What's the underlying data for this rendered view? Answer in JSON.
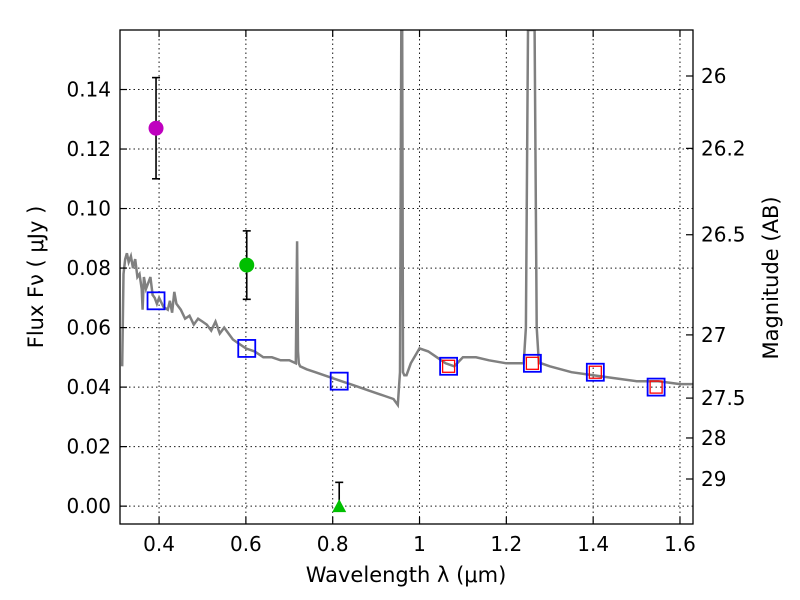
{
  "chart_data": {
    "type": "scatter",
    "xlabel": "Wavelength  λ (μm)",
    "ylabel": "Flux  Fν  ( μJy )",
    "y2label": "Magnitude (AB)",
    "xlim": [
      0.31,
      1.63
    ],
    "ylim": [
      -0.006,
      0.16
    ],
    "xticks": [
      0.4,
      0.6,
      0.8,
      1.0,
      1.2,
      1.4,
      1.6
    ],
    "xtick_labels": [
      "0.4",
      "0.6",
      "0.8",
      "1",
      "1.2",
      "1.4",
      "1.6"
    ],
    "yticks": [
      0.0,
      0.02,
      0.04,
      0.06,
      0.08,
      0.1,
      0.12,
      0.14
    ],
    "ytick_labels": [
      "0.00",
      "0.02",
      "0.04",
      "0.06",
      "0.08",
      "0.10",
      "0.12",
      "0.14"
    ],
    "mag_ticks": [
      26,
      26.2,
      26.5,
      27,
      27.5,
      28,
      29
    ],
    "mag_tick_labels": [
      "26",
      "26.2",
      "26.5",
      "27",
      "27.5",
      "28",
      "29"
    ],
    "grid": true,
    "model_spectrum": {
      "name": "model SED",
      "color": "#808080",
      "x": [
        0.315,
        0.318,
        0.322,
        0.326,
        0.33,
        0.335,
        0.34,
        0.345,
        0.35,
        0.355,
        0.36,
        0.362,
        0.365,
        0.37,
        0.375,
        0.38,
        0.385,
        0.39,
        0.395,
        0.4,
        0.41,
        0.42,
        0.425,
        0.43,
        0.435,
        0.44,
        0.45,
        0.46,
        0.47,
        0.48,
        0.49,
        0.5,
        0.51,
        0.52,
        0.53,
        0.54,
        0.55,
        0.56,
        0.57,
        0.58,
        0.6,
        0.62,
        0.64,
        0.66,
        0.68,
        0.7,
        0.715,
        0.718,
        0.72,
        0.722,
        0.725,
        0.74,
        0.76,
        0.78,
        0.8,
        0.82,
        0.84,
        0.86,
        0.88,
        0.9,
        0.92,
        0.94,
        0.95,
        0.955,
        0.958,
        0.96,
        0.962,
        0.965,
        0.97,
        0.98,
        1.0,
        1.02,
        1.04,
        1.06,
        1.08,
        1.1,
        1.13,
        1.16,
        1.2,
        1.24,
        1.245,
        1.25,
        1.255,
        1.26,
        1.265,
        1.27,
        1.275,
        1.28,
        1.3,
        1.35,
        1.4,
        1.45,
        1.5,
        1.55,
        1.6,
        1.63
      ],
      "y": [
        0.047,
        0.078,
        0.083,
        0.085,
        0.082,
        0.084,
        0.08,
        0.083,
        0.077,
        0.078,
        0.073,
        0.066,
        0.077,
        0.073,
        0.075,
        0.077,
        0.071,
        0.07,
        0.068,
        0.07,
        0.067,
        0.066,
        0.069,
        0.065,
        0.072,
        0.068,
        0.066,
        0.063,
        0.064,
        0.061,
        0.063,
        0.062,
        0.061,
        0.059,
        0.062,
        0.058,
        0.06,
        0.058,
        0.056,
        0.055,
        0.053,
        0.052,
        0.05,
        0.05,
        0.049,
        0.049,
        0.048,
        0.089,
        0.052,
        0.048,
        0.047,
        0.046,
        0.045,
        0.044,
        0.043,
        0.042,
        0.041,
        0.04,
        0.039,
        0.038,
        0.037,
        0.036,
        0.034,
        0.045,
        0.16,
        0.16,
        0.045,
        0.044,
        0.044,
        0.048,
        0.053,
        0.052,
        0.05,
        0.048,
        0.047,
        0.05,
        0.05,
        0.049,
        0.048,
        0.048,
        0.06,
        0.16,
        0.16,
        0.16,
        0.16,
        0.06,
        0.048,
        0.048,
        0.047,
        0.045,
        0.044,
        0.043,
        0.042,
        0.042,
        0.041,
        0.041
      ]
    },
    "detections": [
      {
        "name": "magenta point",
        "x": 0.393,
        "y": 0.127,
        "yerr": 0.017,
        "color": "#bf00bf"
      },
      {
        "name": "green point",
        "x": 0.602,
        "y": 0.081,
        "yerr": 0.0115,
        "color": "#00bf00"
      }
    ],
    "upper_limit": {
      "name": "green triangle",
      "x": 0.815,
      "y": 0.0,
      "yerr_upper": 0.008,
      "color": "#00bf00"
    },
    "model_photometry": [
      {
        "x": 0.393,
        "y": 0.069
      },
      {
        "x": 0.602,
        "y": 0.053
      },
      {
        "x": 0.815,
        "y": 0.042
      },
      {
        "x": 1.067,
        "y": 0.047
      },
      {
        "x": 1.26,
        "y": 0.048
      },
      {
        "x": 1.405,
        "y": 0.045
      },
      {
        "x": 1.545,
        "y": 0.04
      }
    ],
    "model_photometry_color": "#0000ff",
    "observed_photometry": [
      {
        "x": 1.067,
        "y": 0.047
      },
      {
        "x": 1.26,
        "y": 0.048
      },
      {
        "x": 1.405,
        "y": 0.045
      },
      {
        "x": 1.545,
        "y": 0.04
      }
    ],
    "observed_photometry_color": "#ff0000"
  }
}
